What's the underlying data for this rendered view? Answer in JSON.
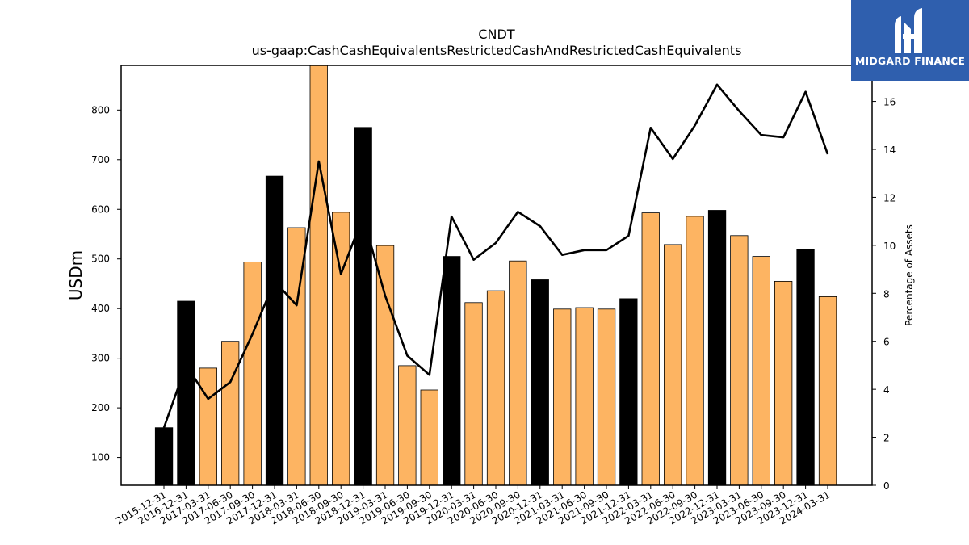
{
  "chart_data": {
    "type": "bar",
    "title": "CNDT",
    "subtitle": "us-gaap:CashCashEquivalentsRestrictedCashAndRestrictedCashEquivalents",
    "ylabel": "USDm",
    "y2label": "Percentage of Assets",
    "ylim": [
      44,
      890
    ],
    "y2lim": [
      0,
      17.5
    ],
    "yticks": [
      100,
      200,
      300,
      400,
      500,
      600,
      700,
      800
    ],
    "y2ticks": [
      0,
      2,
      4,
      6,
      8,
      10,
      12,
      14,
      16
    ],
    "categories": [
      "2015-12-31",
      "2016-12-31",
      "2017-03-31",
      "2017-06-30",
      "2017-09-30",
      "2017-12-31",
      "2018-03-31",
      "2018-06-30",
      "2018-09-30",
      "2018-12-31",
      "2019-03-31",
      "2019-06-30",
      "2019-09-30",
      "2019-12-31",
      "2020-03-31",
      "2020-06-30",
      "2020-09-30",
      "2020-12-31",
      "2021-03-31",
      "2021-06-30",
      "2021-09-30",
      "2021-12-31",
      "2022-03-31",
      "2022-06-30",
      "2022-09-30",
      "2022-12-31",
      "2023-03-31",
      "2023-06-30",
      "2023-09-30",
      "2023-12-31",
      "2024-03-31"
    ],
    "series": [
      {
        "type": "bar",
        "values": [
          160,
          415,
          280,
          334,
          494,
          667,
          563,
          890,
          594,
          765,
          527,
          285,
          236,
          505,
          412,
          436,
          496,
          458,
          399,
          402,
          399,
          420,
          593,
          529,
          586,
          598,
          547,
          505,
          455,
          520,
          424
        ]
      },
      {
        "type": "line",
        "axis": "right",
        "values": [
          2.4,
          5.0,
          3.6,
          4.3,
          6.3,
          8.5,
          7.5,
          13.5,
          8.8,
          11.2,
          7.9,
          5.4,
          4.6,
          11.2,
          9.4,
          10.1,
          11.4,
          10.8,
          9.6,
          9.8,
          9.8,
          10.4,
          14.9,
          13.6,
          15.0,
          16.7,
          15.6,
          14.6,
          14.5,
          16.4,
          13.8
        ]
      }
    ],
    "bar_colors": {
      "annual": "#000000",
      "quarterly": "#fdb462"
    },
    "annual_flags": [
      true,
      true,
      false,
      false,
      false,
      true,
      false,
      false,
      false,
      true,
      false,
      false,
      false,
      true,
      false,
      false,
      false,
      true,
      false,
      false,
      false,
      true,
      false,
      false,
      false,
      true,
      false,
      false,
      false,
      true,
      false
    ],
    "line_color": "#000000",
    "grid": false
  },
  "logo": {
    "text": "MIDGARD FINANCE",
    "background": "#2f5fae"
  }
}
